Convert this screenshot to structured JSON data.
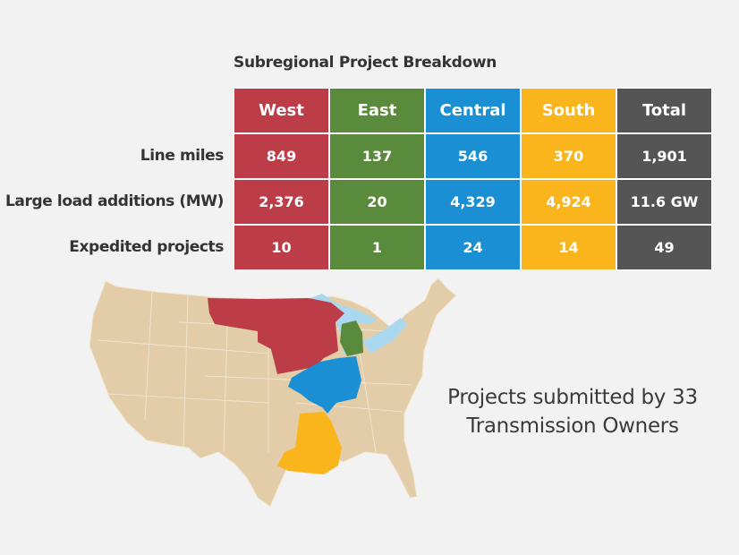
{
  "colors": {
    "West": "#bc3d48",
    "East": "#5a8a3c",
    "Central": "#1b8fd4",
    "South": "#f9b51b",
    "Total": "#555555",
    "land": "#e3cda8",
    "lakes": "#a9d8ef"
  },
  "chart_data": {
    "type": "table",
    "title": "Subregional Project Breakdown",
    "columns": [
      "West",
      "East",
      "Central",
      "South",
      "Total"
    ],
    "rows": [
      {
        "label": "Line miles",
        "values": [
          "849",
          "137",
          "546",
          "370",
          "1,901"
        ]
      },
      {
        "label": "Large load additions (MW)",
        "values": [
          "2,376",
          "20",
          "4,329",
          "4,924",
          "11.6 GW"
        ]
      },
      {
        "label": "Expedited projects",
        "values": [
          "10",
          "1",
          "24",
          "14",
          "49"
        ]
      }
    ]
  },
  "note": "Projects submitted by 33 Transmission Owners"
}
